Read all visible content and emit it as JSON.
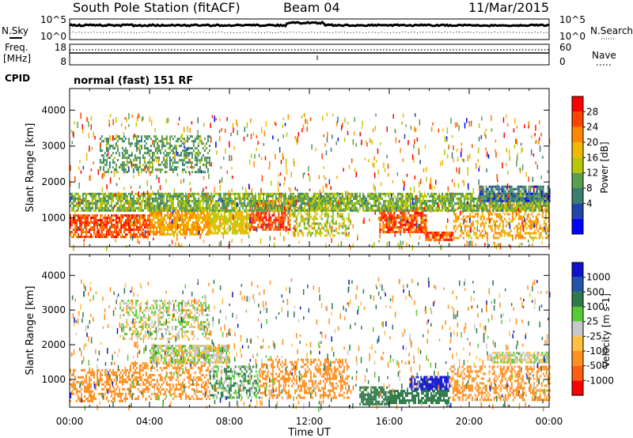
{
  "header": {
    "station": "South Pole Station (fitACF)",
    "beam": "Beam 04",
    "date": "11/Mar/2015"
  },
  "noise_panel": {
    "left_label": "N.Sky",
    "right_label": "N.Search",
    "ticks_left": [
      "10^5",
      "10^0"
    ],
    "ticks_right": [
      "10^5",
      "10^0"
    ]
  },
  "freq_panel": {
    "left_label_line1": "Freq.",
    "left_label_line2": "[MHz]",
    "right_label": "Nave",
    "ticks_left": [
      "18",
      "8"
    ],
    "ticks_right": [
      "60",
      "0"
    ]
  },
  "cpid": {
    "label": "CPID",
    "value": "normal (fast) 151 RF"
  },
  "axes": {
    "xlabel": "Time UT",
    "ylabel": "Slant Range [km]",
    "xticks": [
      "00:00",
      "04:00",
      "08:00",
      "12:00",
      "16:00",
      "20:00",
      "00:00"
    ],
    "yticks": [
      "1000",
      "2000",
      "3000",
      "4000"
    ]
  },
  "power_bar": {
    "label": "Power [dB]",
    "ticks": [
      "28",
      "24",
      "20",
      "16",
      "12",
      "8",
      "4"
    ],
    "colors": [
      "#ff0000",
      "#ff4400",
      "#ff8800",
      "#f0b800",
      "#b8c800",
      "#5a9e50",
      "#3a7e70",
      "#2244aa",
      "#0000ff"
    ]
  },
  "velocity_bar": {
    "label": "Velocity [m s-1]",
    "ticks": [
      "1000",
      "500",
      "100",
      "25",
      "-25",
      "-100",
      "-500",
      "-1000"
    ],
    "colors": [
      "#1111cc",
      "#2255aa",
      "#2f7a4a",
      "#55cc33",
      "#c8c8c8",
      "#ffc040",
      "#ff9020",
      "#ff6010",
      "#ff0000"
    ]
  },
  "chart_data": [
    {
      "type": "heatmap",
      "name": "power",
      "x_range_hours": [
        0,
        24
      ],
      "y_range_km": [
        200,
        4600
      ],
      "regions": [
        {
          "t0": 0.0,
          "t1": 4.0,
          "r0": 450,
          "r1": 1100,
          "value_db": 26
        },
        {
          "t0": 4.0,
          "t1": 7.0,
          "r0": 550,
          "r1": 1300,
          "value_db": 20
        },
        {
          "t0": 7.0,
          "t1": 9.0,
          "r0": 600,
          "r1": 1200,
          "value_db": 16
        },
        {
          "t0": 9.0,
          "t1": 11.0,
          "r0": 700,
          "r1": 1500,
          "value_db": 26
        },
        {
          "t0": 11.0,
          "t1": 14.0,
          "r0": 500,
          "r1": 1600,
          "value_db": 14
        },
        {
          "t0": 15.5,
          "t1": 17.8,
          "r0": 600,
          "r1": 1300,
          "value_db": 26
        },
        {
          "t0": 17.8,
          "t1": 19.2,
          "r0": 380,
          "r1": 620,
          "value_db": 26
        },
        {
          "t0": 19.2,
          "t1": 24.0,
          "r0": 450,
          "r1": 1400,
          "value_db": 20
        },
        {
          "t0": 0.0,
          "t1": 24.0,
          "r0": 1200,
          "r1": 1700,
          "value_db": 11
        },
        {
          "t0": 1.5,
          "t1": 7.0,
          "r0": 2300,
          "r1": 3300,
          "value_db": 9
        },
        {
          "t0": 20.5,
          "t1": 24.0,
          "r0": 1500,
          "r1": 1900,
          "value_db": 6
        }
      ]
    },
    {
      "type": "heatmap",
      "name": "velocity",
      "x_range_hours": [
        0,
        24
      ],
      "y_range_km": [
        200,
        4600
      ],
      "regions": [
        {
          "t0": 0.0,
          "t1": 3.0,
          "r0": 400,
          "r1": 1300,
          "value_ms": -200
        },
        {
          "t0": 3.0,
          "t1": 7.0,
          "r0": 450,
          "r1": 1500,
          "value_ms": -150
        },
        {
          "t0": 7.0,
          "t1": 9.5,
          "r0": 500,
          "r1": 1400,
          "value_ms": 60
        },
        {
          "t0": 9.5,
          "t1": 14.0,
          "r0": 450,
          "r1": 1600,
          "value_ms": -120
        },
        {
          "t0": 14.5,
          "t1": 16.0,
          "r0": 300,
          "r1": 800,
          "value_ms": 150
        },
        {
          "t0": 16.0,
          "t1": 19.0,
          "r0": 350,
          "r1": 700,
          "value_ms": 150
        },
        {
          "t0": 17.0,
          "t1": 19.0,
          "r0": 700,
          "r1": 1100,
          "value_ms": 800
        },
        {
          "t0": 19.0,
          "t1": 24.0,
          "r0": 400,
          "r1": 1400,
          "value_ms": -130
        },
        {
          "t0": 2.5,
          "t1": 7.0,
          "r0": 2200,
          "r1": 3300,
          "value_ms": 0
        },
        {
          "t0": 4.0,
          "t1": 8.0,
          "r0": 1500,
          "r1": 2000,
          "value_ms": 0
        },
        {
          "t0": 21.0,
          "t1": 24.0,
          "r0": 1500,
          "r1": 1800,
          "value_ms": 0
        }
      ]
    }
  ]
}
